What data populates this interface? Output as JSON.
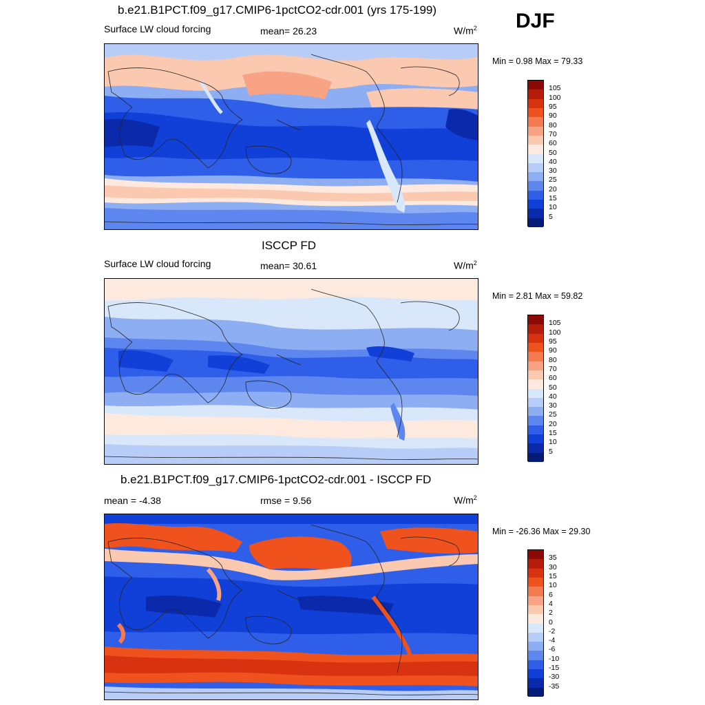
{
  "season": "DJF",
  "panels": [
    {
      "title": "b.e21.B1PCT.f09_g17.CMIP6-1pctCO2-cdr.001 (yrs 175-199)",
      "left_label": "Surface LW cloud forcing",
      "center_label": "mean=  26.23",
      "units": "W/m",
      "units_sup": "2",
      "minmax": "Min =   0.98 Max =  79.33",
      "levels": [
        "105",
        "100",
        "95",
        "90",
        "80",
        "70",
        "60",
        "50",
        "40",
        "30",
        "25",
        "20",
        "15",
        "10",
        "5"
      ],
      "colors": [
        "#8c0a06",
        "#b51c0a",
        "#d83210",
        "#f0521e",
        "#f47a50",
        "#f8a384",
        "#fbc8b0",
        "#fde9de",
        "#d9e7fb",
        "#b7ccf7",
        "#8eaef4",
        "#5d86ef",
        "#2f5ee8",
        "#1140d8",
        "#0a2aab",
        "#061a78"
      ],
      "stats": {
        "mean": 26.23,
        "min": 0.98,
        "max": 79.33
      }
    },
    {
      "title": "ISCCP FD",
      "left_label": "Surface LW cloud forcing",
      "center_label": "mean=  30.61",
      "units": "W/m",
      "units_sup": "2",
      "minmax": "Min =   2.81 Max =  59.82",
      "levels": [
        "105",
        "100",
        "95",
        "90",
        "80",
        "70",
        "60",
        "50",
        "40",
        "30",
        "25",
        "20",
        "15",
        "10",
        "5"
      ],
      "colors": [
        "#8c0a06",
        "#b51c0a",
        "#d83210",
        "#f0521e",
        "#f47a50",
        "#f8a384",
        "#fbc8b0",
        "#fde9de",
        "#d9e7fb",
        "#b7ccf7",
        "#8eaef4",
        "#5d86ef",
        "#2f5ee8",
        "#1140d8",
        "#0a2aab",
        "#061a78"
      ],
      "stats": {
        "mean": 30.61,
        "min": 2.81,
        "max": 59.82
      }
    },
    {
      "title": "b.e21.B1PCT.f09_g17.CMIP6-1pctCO2-cdr.001 - ISCCP FD",
      "left_label": "mean =  -4.38",
      "center_label": "rmse =    9.56",
      "units": "W/m",
      "units_sup": "2",
      "minmax": "Min = -26.36 Max =  29.30",
      "levels": [
        "35",
        "30",
        "15",
        "10",
        "6",
        "4",
        "2",
        "0",
        "-2",
        "-4",
        "-6",
        "-10",
        "-15",
        "-30",
        "-35"
      ],
      "colors": [
        "#8c0a06",
        "#b51c0a",
        "#d83210",
        "#f0521e",
        "#f47a50",
        "#f8a384",
        "#fbc8b0",
        "#fde9de",
        "#d9e7fb",
        "#b7ccf7",
        "#8eaef4",
        "#5d86ef",
        "#2f5ee8",
        "#1140d8",
        "#0a2aab",
        "#061a78"
      ],
      "stats": {
        "mean": -4.38,
        "rmse": 9.56,
        "min": -26.36,
        "max": 29.3
      }
    }
  ],
  "chart_data": [
    {
      "type": "heatmap",
      "title": "b.e21.B1PCT.f09_g17.CMIP6-1pctCO2-cdr.001 (yrs 175-199)",
      "variable": "Surface LW cloud forcing",
      "units": "W/m2",
      "season": "DJF",
      "mean": 26.23,
      "min": 0.98,
      "max": 79.33,
      "contour_levels": [
        5,
        10,
        15,
        20,
        25,
        30,
        40,
        50,
        60,
        70,
        80,
        90,
        95,
        100,
        105
      ]
    },
    {
      "type": "heatmap",
      "title": "ISCCP FD",
      "variable": "Surface LW cloud forcing",
      "units": "W/m2",
      "season": "DJF",
      "mean": 30.61,
      "min": 2.81,
      "max": 59.82,
      "contour_levels": [
        5,
        10,
        15,
        20,
        25,
        30,
        40,
        50,
        60,
        70,
        80,
        90,
        95,
        100,
        105
      ]
    },
    {
      "type": "heatmap",
      "title": "b.e21.B1PCT.f09_g17.CMIP6-1pctCO2-cdr.001 - ISCCP FD",
      "units": "W/m2",
      "season": "DJF",
      "mean": -4.38,
      "rmse": 9.56,
      "min": -26.36,
      "max": 29.3,
      "contour_levels": [
        -35,
        -30,
        -15,
        -10,
        -6,
        -4,
        -2,
        0,
        2,
        4,
        6,
        10,
        15,
        30,
        35
      ]
    }
  ]
}
